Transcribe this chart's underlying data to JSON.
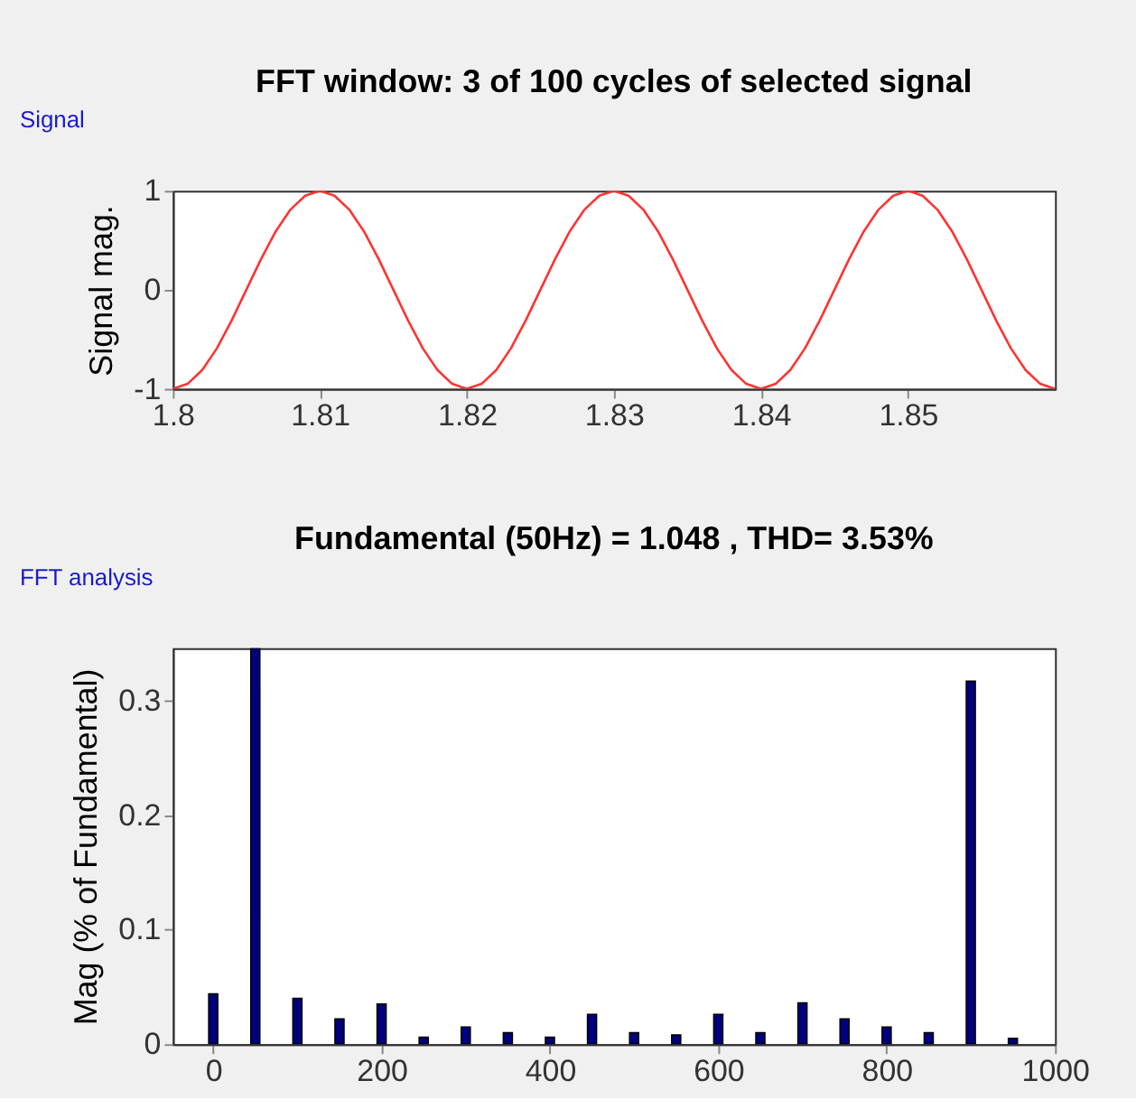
{
  "chart_data": [
    {
      "type": "line",
      "title": "FFT window: 3 of 100 cycles of selected signal",
      "ylabel": "Signal mag.",
      "annotations": [
        "Signal"
      ],
      "x": [
        1.8,
        1.801,
        1.802,
        1.803,
        1.804,
        1.805,
        1.806,
        1.807,
        1.808,
        1.809,
        1.81,
        1.811,
        1.812,
        1.813,
        1.814,
        1.815,
        1.816,
        1.817,
        1.818,
        1.819,
        1.82,
        1.821,
        1.822,
        1.823,
        1.824,
        1.825,
        1.826,
        1.827,
        1.828,
        1.829,
        1.83,
        1.831,
        1.832,
        1.833,
        1.834,
        1.835,
        1.836,
        1.837,
        1.838,
        1.839,
        1.84,
        1.841,
        1.842,
        1.843,
        1.844,
        1.845,
        1.846,
        1.847,
        1.848,
        1.849,
        1.85,
        1.851,
        1.852,
        1.853,
        1.854,
        1.855,
        1.856,
        1.857,
        1.858,
        1.859,
        1.86
      ],
      "series": [
        {
          "color": "#ff3333",
          "values": [
            -1,
            -0.95,
            -0.81,
            -0.59,
            -0.31,
            0,
            0.31,
            0.59,
            0.81,
            0.95,
            1,
            0.95,
            0.81,
            0.59,
            0.31,
            0,
            -0.31,
            -0.59,
            -0.81,
            -0.95,
            -1,
            -0.95,
            -0.81,
            -0.59,
            -0.31,
            0,
            0.31,
            0.59,
            0.81,
            0.95,
            1,
            0.95,
            0.81,
            0.59,
            0.31,
            0,
            -0.31,
            -0.59,
            -0.81,
            -0.95,
            -1,
            -0.95,
            -0.81,
            -0.59,
            -0.31,
            0,
            0.31,
            0.59,
            0.81,
            0.95,
            1,
            0.95,
            0.81,
            0.59,
            0.31,
            0,
            -0.31,
            -0.59,
            -0.81,
            -0.95,
            -1
          ]
        }
      ],
      "xlim": [
        1.8,
        1.86
      ],
      "xticks": [
        1.8,
        1.81,
        1.82,
        1.83,
        1.84,
        1.85
      ],
      "ylim": [
        -1,
        1
      ],
      "yticks": [
        -1,
        0,
        1
      ],
      "grid": false
    },
    {
      "type": "bar",
      "title": "Fundamental (50Hz) = 1.048 , THD= 3.53%",
      "ylabel": "Mag (% of Fundamental)",
      "annotations": [
        "FFT analysis"
      ],
      "x": [
        0,
        50,
        100,
        150,
        200,
        250,
        300,
        350,
        400,
        450,
        500,
        550,
        600,
        650,
        700,
        750,
        800,
        850,
        900,
        950
      ],
      "series": [
        {
          "color": "#00007f",
          "values": [
            0.044,
            0.346,
            0.04,
            0.022,
            0.035,
            0.006,
            0.015,
            0.01,
            0.006,
            0.026,
            0.01,
            0.008,
            0.026,
            0.01,
            0.036,
            0.022,
            0.015,
            0.01,
            0.317,
            0.005
          ]
        }
      ],
      "xlim": [
        -48,
        1000
      ],
      "xticks": [
        0,
        200,
        400,
        600,
        800,
        1000
      ],
      "ylim": [
        0,
        0.346
      ],
      "yticks": [
        0,
        0.1,
        0.2,
        0.3
      ],
      "grid": false
    }
  ]
}
